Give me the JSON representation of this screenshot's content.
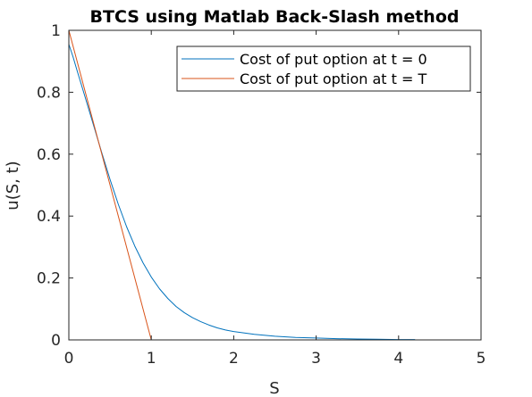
{
  "chart_data": {
    "type": "line",
    "title": "BTCS using Matlab Back-Slash method",
    "xlabel": "S",
    "ylabel": "u(S, t)",
    "xlim": [
      0,
      5
    ],
    "ylim": [
      0,
      1
    ],
    "xticks": [
      0,
      1,
      2,
      3,
      4,
      5
    ],
    "xtick_labels": [
      "0",
      "1",
      "2",
      "3",
      "4",
      "5"
    ],
    "yticks": [
      0,
      0.2,
      0.4,
      0.6,
      0.8,
      1
    ],
    "ytick_labels": [
      "0",
      "0.2",
      "0.4",
      "0.6",
      "0.8",
      "1"
    ],
    "grid": false,
    "legend_position": "top-right",
    "series": [
      {
        "name": "Cost of put option at t = 0",
        "color": "#0072BD",
        "x": [
          0,
          0.05,
          0.1,
          0.2,
          0.3,
          0.4,
          0.5,
          0.6,
          0.7,
          0.8,
          0.9,
          1.0,
          1.1,
          1.2,
          1.3,
          1.4,
          1.5,
          1.6,
          1.7,
          1.8,
          1.9,
          2.0,
          2.25,
          2.5,
          2.75,
          3.0,
          3.25,
          3.5,
          3.75,
          4.0,
          4.2
        ],
        "y": [
          0.955,
          0.915,
          0.87,
          0.782,
          0.693,
          0.604,
          0.518,
          0.438,
          0.366,
          0.303,
          0.249,
          0.203,
          0.165,
          0.134,
          0.108,
          0.088,
          0.072,
          0.059,
          0.048,
          0.039,
          0.032,
          0.027,
          0.018,
          0.012,
          0.008,
          0.006,
          0.004,
          0.003,
          0.002,
          0.001,
          0.001
        ]
      },
      {
        "name": "Cost of put option at t = T",
        "color": "#D95319",
        "x": [
          0,
          1,
          1.5,
          2,
          3,
          4,
          4.9
        ],
        "y": [
          1,
          0,
          0,
          0,
          0,
          0,
          0
        ]
      }
    ]
  }
}
